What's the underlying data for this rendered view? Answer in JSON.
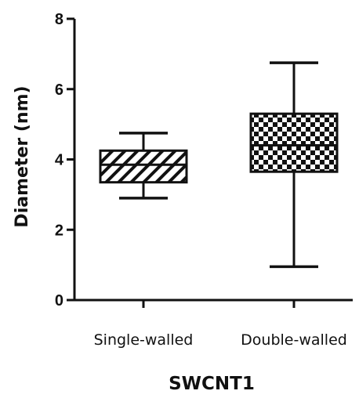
{
  "chart_data": {
    "type": "box",
    "ylabel": "Diameter (nm)",
    "xlabel": "SWCNT1",
    "ylim": [
      0,
      8
    ],
    "yticks": [
      0,
      2,
      4,
      6,
      8
    ],
    "grid": false,
    "categories": [
      "Single-walled",
      "Double-walled"
    ],
    "boxes": [
      {
        "category": "Single-walled",
        "min": 2.9,
        "q1": 3.35,
        "median": 3.85,
        "q3": 4.25,
        "max": 4.75,
        "fill_pattern": "diagonal-hatch"
      },
      {
        "category": "Double-walled",
        "min": 0.95,
        "q1": 3.65,
        "median": 4.4,
        "q3": 5.3,
        "max": 6.75,
        "fill_pattern": "checkerboard"
      }
    ]
  }
}
